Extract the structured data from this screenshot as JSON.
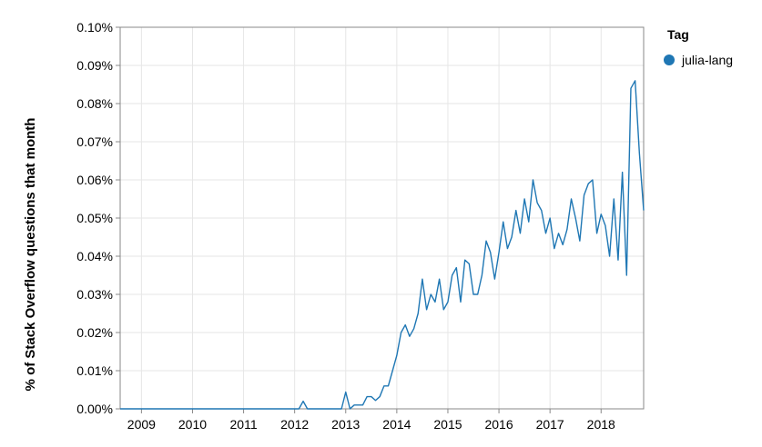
{
  "chart_data": {
    "type": "line",
    "ylabel": "% of Stack Overflow questions that month",
    "xlabel": "",
    "ylim": [
      0,
      0.1
    ],
    "y_ticks": [
      "0.00%",
      "0.01%",
      "0.02%",
      "0.03%",
      "0.04%",
      "0.05%",
      "0.06%",
      "0.07%",
      "0.08%",
      "0.09%",
      "0.10%"
    ],
    "x_ticks": [
      "2009",
      "2010",
      "2011",
      "2012",
      "2013",
      "2014",
      "2015",
      "2016",
      "2017",
      "2018"
    ],
    "xlim": [
      "2008-08",
      "2018-11"
    ],
    "grid": true,
    "legend": {
      "title": "Tag",
      "position": "top-right"
    },
    "series": [
      {
        "name": "julia-lang",
        "color": "#1f77b4",
        "x": [
          "2008-08",
          "2008-09",
          "2012-02",
          "2012-03",
          "2012-04",
          "2012-12",
          "2013-01",
          "2013-02",
          "2013-03",
          "2013-04",
          "2013-05",
          "2013-06",
          "2013-07",
          "2013-08",
          "2013-09",
          "2013-10",
          "2013-11",
          "2013-12",
          "2014-01",
          "2014-02",
          "2014-03",
          "2014-04",
          "2014-05",
          "2014-06",
          "2014-07",
          "2014-08",
          "2014-09",
          "2014-10",
          "2014-11",
          "2014-12",
          "2015-01",
          "2015-02",
          "2015-03",
          "2015-04",
          "2015-05",
          "2015-06",
          "2015-07",
          "2015-08",
          "2015-09",
          "2015-10",
          "2015-11",
          "2015-12",
          "2016-01",
          "2016-02",
          "2016-03",
          "2016-04",
          "2016-05",
          "2016-06",
          "2016-07",
          "2016-08",
          "2016-09",
          "2016-10",
          "2016-11",
          "2016-12",
          "2017-01",
          "2017-02",
          "2017-03",
          "2017-04",
          "2017-05",
          "2017-06",
          "2017-07",
          "2017-08",
          "2017-09",
          "2017-10",
          "2017-11",
          "2017-12",
          "2018-01",
          "2018-02",
          "2018-03",
          "2018-04",
          "2018-05",
          "2018-06",
          "2018-07",
          "2018-08",
          "2018-09",
          "2018-10",
          "2018-11"
        ],
        "values": [
          0,
          0,
          0,
          0.002,
          0,
          0,
          0.0044,
          0,
          0.001,
          0.001,
          0.001,
          0.0032,
          0.0032,
          0.0022,
          0.0032,
          0.006,
          0.006,
          0.01,
          0.014,
          0.02,
          0.022,
          0.019,
          0.021,
          0.025,
          0.034,
          0.026,
          0.03,
          0.028,
          0.034,
          0.026,
          0.028,
          0.035,
          0.037,
          0.028,
          0.039,
          0.038,
          0.03,
          0.03,
          0.035,
          0.044,
          0.041,
          0.034,
          0.041,
          0.049,
          0.042,
          0.045,
          0.052,
          0.046,
          0.055,
          0.049,
          0.06,
          0.054,
          0.052,
          0.046,
          0.05,
          0.042,
          0.046,
          0.043,
          0.047,
          0.055,
          0.05,
          0.044,
          0.056,
          0.059,
          0.06,
          0.046,
          0.051,
          0.048,
          0.04,
          0.055,
          0.039,
          0.062,
          0.035,
          0.084,
          0.086,
          0.067,
          0.052
        ]
      }
    ]
  }
}
